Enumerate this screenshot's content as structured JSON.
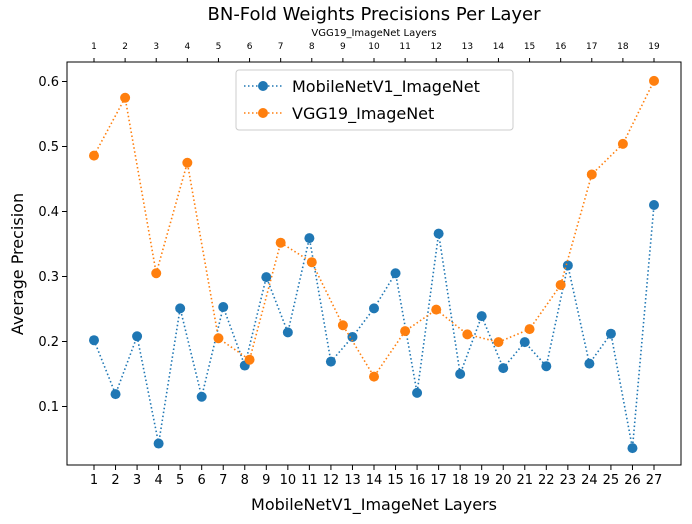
{
  "chart_data": {
    "type": "line",
    "title": "BN-Fold Weights Precisions Per Layer",
    "xlabel": "MobileNetV1_ImageNet Layers",
    "ylabel": "Average Precision",
    "top_xlabel": "VGG19_ImageNet Layers",
    "ylim": [
      0.01,
      0.63
    ],
    "yticks": [
      0.1,
      0.2,
      0.3,
      0.4,
      0.5,
      0.6
    ],
    "ytick_labels": [
      "0.1",
      "0.2",
      "0.3",
      "0.4",
      "0.5",
      "0.6"
    ],
    "legend_position": "upper-center",
    "series": [
      {
        "name": "MobileNetV1_ImageNet",
        "color": "#1f77b4",
        "x": [
          1,
          2,
          3,
          4,
          5,
          6,
          7,
          8,
          9,
          10,
          11,
          12,
          13,
          14,
          15,
          16,
          17,
          18,
          19,
          20,
          21,
          22,
          23,
          24,
          25,
          26,
          27
        ],
        "x_tick_labels": [
          "1",
          "2",
          "3",
          "4",
          "5",
          "6",
          "7",
          "8",
          "9",
          "10",
          "11",
          "12",
          "13",
          "14",
          "15",
          "16",
          "17",
          "18",
          "19",
          "20",
          "21",
          "22",
          "23",
          "24",
          "25",
          "26",
          "27"
        ],
        "values": [
          0.202,
          0.119,
          0.208,
          0.043,
          0.251,
          0.115,
          0.253,
          0.163,
          0.299,
          0.214,
          0.359,
          0.169,
          0.207,
          0.251,
          0.305,
          0.121,
          0.366,
          0.15,
          0.239,
          0.159,
          0.199,
          0.162,
          0.317,
          0.166,
          0.212,
          0.036,
          0.41
        ]
      },
      {
        "name": "VGG19_ImageNet",
        "color": "#ff7f0e",
        "x": [
          1,
          2,
          3,
          4,
          5,
          6,
          7,
          8,
          9,
          10,
          11,
          12,
          13,
          14,
          15,
          16,
          17,
          18,
          19
        ],
        "x_tick_labels": [
          "1",
          "2",
          "3",
          "4",
          "5",
          "6",
          "7",
          "8",
          "9",
          "10",
          "11",
          "12",
          "13",
          "14",
          "15",
          "16",
          "17",
          "18",
          "19"
        ],
        "values": [
          0.486,
          0.575,
          0.305,
          0.475,
          0.205,
          0.172,
          0.352,
          0.322,
          0.225,
          0.146,
          0.216,
          0.249,
          0.211,
          0.199,
          0.219,
          0.287,
          0.457,
          0.504,
          0.601
        ]
      }
    ]
  }
}
